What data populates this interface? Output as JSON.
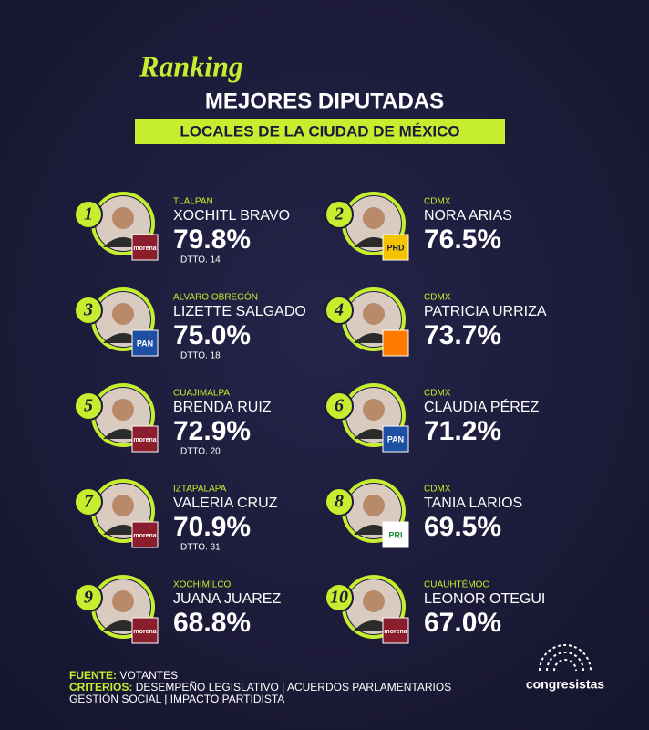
{
  "header": {
    "kicker": "Ranking",
    "title": "MEJORES DIPUTADAS",
    "subtitle": "LOCALES DE LA CIUDAD DE MÉXICO"
  },
  "entries": [
    {
      "rank": 1,
      "location": "TLALPAN",
      "name": "XOCHITL BRAVO",
      "percent": "79.8%",
      "district": "DTTO. 14",
      "party": "morena",
      "party_color": "#8b1e2d"
    },
    {
      "rank": 2,
      "location": "CDMX",
      "name": "NORA ARIAS",
      "percent": "76.5%",
      "party": "PRD",
      "party_color": "#f5c400"
    },
    {
      "rank": 3,
      "location": "ALVARO OBREGÓN",
      "name": "LIZETTE SALGADO",
      "percent": "75.0%",
      "district": "DTTO. 18",
      "party": "PAN",
      "party_color": "#1f4fa3"
    },
    {
      "rank": 4,
      "location": "CDMX",
      "name": "PATRICIA URRIZA",
      "percent": "73.7%",
      "party_color": "#ff7a00"
    },
    {
      "rank": 5,
      "location": "CUAJIMALPA",
      "name": "BRENDA RUIZ",
      "percent": "72.9%",
      "district": "DTTO. 20",
      "party": "morena",
      "party_color": "#8b1e2d"
    },
    {
      "rank": 6,
      "location": "CDMX",
      "name": "CLAUDIA PÉREZ",
      "percent": "71.2%",
      "party": "PAN",
      "party_color": "#1f4fa3"
    },
    {
      "rank": 7,
      "location": "IZTAPALAPA",
      "name": "VALERIA CRUZ",
      "percent": "70.9%",
      "district": "DTTO. 31",
      "party": "morena",
      "party_color": "#8b1e2d"
    },
    {
      "rank": 8,
      "location": "CDMX",
      "name": "TANIA LARIOS",
      "percent": "69.5%",
      "party": "PRI",
      "party_color": "#ffffff"
    },
    {
      "rank": 9,
      "location": "XOCHIMILCO",
      "name": "JUANA JUAREZ",
      "percent": "68.8%",
      "party": "morena",
      "party_color": "#8b1e2d"
    },
    {
      "rank": 10,
      "location": "CUAUHTÉMOC",
      "name": "LEONOR OTEGUI",
      "percent": "67.0%",
      "party": "morena",
      "party_color": "#8b1e2d"
    }
  ],
  "footer": {
    "source_label": "FUENTE:",
    "source": "VOTANTES",
    "criteria_label": "CRITERIOS:",
    "criteria": "DESEMPEÑO LEGISLATIVO | ACUERDOS PARLAMENTARIOS",
    "criteria_2": "GESTIÓN SOCIAL | IMPACTO PARTIDISTA",
    "brand": "congresistas"
  }
}
